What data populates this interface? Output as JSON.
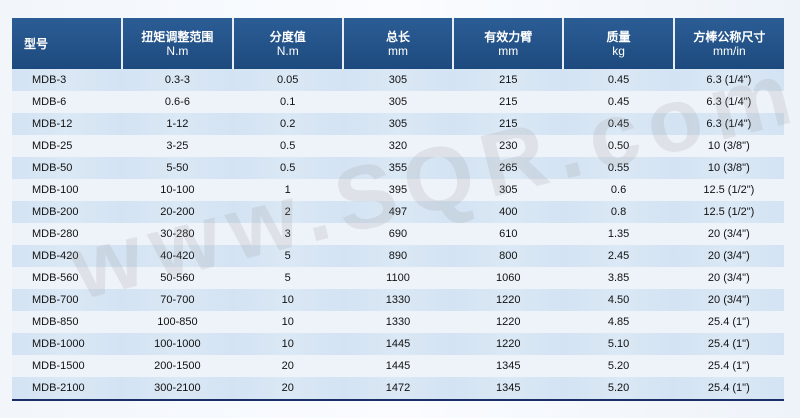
{
  "table": {
    "headers": [
      {
        "title": "型号",
        "unit": ""
      },
      {
        "title": "扭矩调整范围",
        "unit": "N.m"
      },
      {
        "title": "分度值",
        "unit": "N.m"
      },
      {
        "title": "总长",
        "unit": "mm"
      },
      {
        "title": "有效力臂",
        "unit": "mm"
      },
      {
        "title": "质量",
        "unit": "kg"
      },
      {
        "title": "方棒公称尺寸",
        "unit": "mm/in"
      }
    ],
    "rows": [
      [
        "MDB-3",
        "0.3-3",
        "0.05",
        "305",
        "215",
        "0.45",
        "6.3 (1/4\")"
      ],
      [
        "MDB-6",
        "0.6-6",
        "0.1",
        "305",
        "215",
        "0.45",
        "6.3 (1/4\")"
      ],
      [
        "MDB-12",
        "1-12",
        "0.2",
        "305",
        "215",
        "0.45",
        "6.3 (1/4\")"
      ],
      [
        "MDB-25",
        "3-25",
        "0.5",
        "320",
        "230",
        "0.50",
        "10 (3/8\")"
      ],
      [
        "MDB-50",
        "5-50",
        "0.5",
        "355",
        "265",
        "0.55",
        "10 (3/8\")"
      ],
      [
        "MDB-100",
        "10-100",
        "1",
        "395",
        "305",
        "0.6",
        "12.5 (1/2\")"
      ],
      [
        "MDB-200",
        "20-200",
        "2",
        "497",
        "400",
        "0.8",
        "12.5 (1/2\")"
      ],
      [
        "MDB-280",
        "30-280",
        "3",
        "690",
        "610",
        "1.35",
        "20 (3/4\")"
      ],
      [
        "MDB-420",
        "40-420",
        "5",
        "890",
        "800",
        "2.45",
        "20 (3/4\")"
      ],
      [
        "MDB-560",
        "50-560",
        "5",
        "1100",
        "1060",
        "3.85",
        "20 (3/4\")"
      ],
      [
        "MDB-700",
        "70-700",
        "10",
        "1330",
        "1220",
        "4.50",
        "20 (3/4\")"
      ],
      [
        "MDB-850",
        "100-850",
        "10",
        "1330",
        "1220",
        "4.85",
        "25.4 (1\")"
      ],
      [
        "MDB-1000",
        "100-1000",
        "10",
        "1445",
        "1220",
        "5.10",
        "25.4 (1\")"
      ],
      [
        "MDB-1500",
        "200-1500",
        "20",
        "1445",
        "1345",
        "5.20",
        "25.4 (1\")"
      ],
      [
        "MDB-2100",
        "300-2100",
        "20",
        "1472",
        "1345",
        "5.20",
        "25.4 (1\")"
      ]
    ]
  },
  "watermark": "www.SQR.com.cn",
  "colors": {
    "header": "#1f4e85",
    "row_odd": "#d3e3f3",
    "row_even": "#eef3fa"
  }
}
